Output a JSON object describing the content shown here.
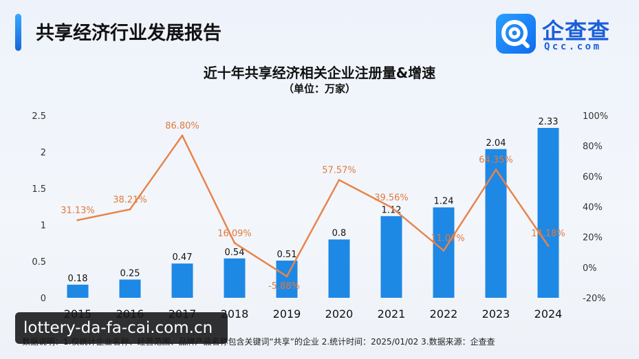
{
  "header": {
    "title": "共享经济行业发展报告",
    "brand": {
      "name": "企查查",
      "domain": "Qcc.com"
    }
  },
  "chart_data": {
    "type": "bar+line",
    "title": "近十年共享经济相关企业注册量&增速",
    "subtitle": "（单位：万家）",
    "categories": [
      "2015",
      "2016",
      "2017",
      "2018",
      "2019",
      "2020",
      "2021",
      "2022",
      "2023",
      "2024"
    ],
    "series": [
      {
        "type": "bar",
        "axis": "left",
        "values": [
          0.18,
          0.25,
          0.47,
          0.54,
          0.51,
          0.8,
          1.12,
          1.24,
          2.04,
          2.33
        ],
        "labels": [
          "0.18",
          "0.25",
          "0.47",
          "0.54",
          "0.51",
          "0.8",
          "1.12",
          "1.24",
          "2.04",
          "2.33"
        ]
      },
      {
        "type": "line",
        "axis": "right",
        "values": [
          31.13,
          38.21,
          86.8,
          16.09,
          -5.88,
          57.57,
          39.56,
          11.07,
          64.35,
          14.18
        ],
        "labels": [
          "31.13%",
          "38.21%",
          "86.80%",
          "16.09%",
          "-5.88%",
          "57.57%",
          "39.56%",
          "11.07%",
          "64.35%",
          "14.18%"
        ]
      }
    ],
    "y_left": {
      "min": 0,
      "max": 2.5,
      "ticks": [
        "0",
        "0.5",
        "1",
        "1.5",
        "2",
        "2.5"
      ]
    },
    "y_right": {
      "min": -20,
      "max": 100,
      "ticks": [
        "-20%",
        "0%",
        "20%",
        "40%",
        "60%",
        "80%",
        "100%"
      ]
    },
    "grid": false,
    "colors": {
      "bar": "#1e88e5",
      "line": "#e8844a",
      "line_label": "#e07a3c"
    }
  },
  "footnote": "数据说明：1.仅统计企业名称、经营范围、品牌产品名称包含关键词“共享”的企业  2.统计时间：2025/01/02  3.数据来源：企查查",
  "watermark": "lottery-da-fa-cai.com.cn"
}
